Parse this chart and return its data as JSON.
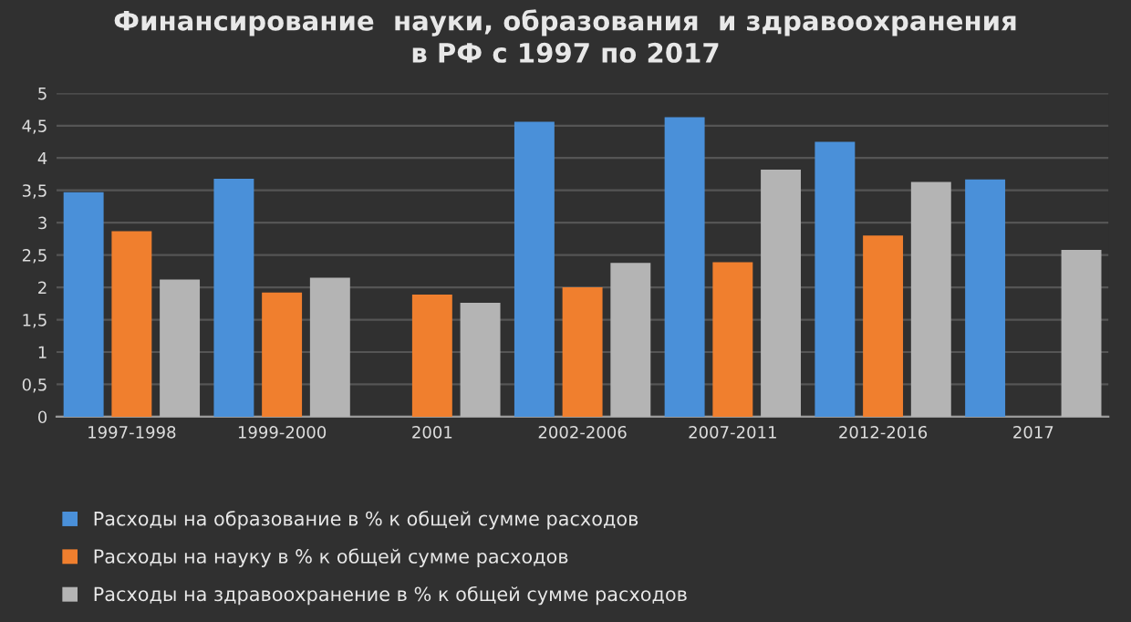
{
  "chart_data": {
    "type": "bar",
    "title": "Финансирование  науки, образования  и здравоохранения\nв РФ с 1997 по 2017",
    "categories": [
      "1997-1998",
      "1999-2000",
      "2001",
      "2002-2006",
      "2007-2011",
      "2012-2016",
      "2017"
    ],
    "series": [
      {
        "name": "Расходы на образование в % к общей сумме расходов",
        "color": "#4a90d9",
        "values": [
          3.47,
          3.68,
          null,
          4.56,
          4.63,
          4.25,
          3.67
        ]
      },
      {
        "name": "Расходы на науку в % к общей сумме расходов",
        "color": "#f07f2e",
        "values": [
          2.87,
          1.92,
          1.89,
          2.0,
          2.39,
          2.8,
          null
        ]
      },
      {
        "name": "Расходы на здравоохранение в % к общей сумме расходов",
        "color": "#b4b4b4",
        "values": [
          2.12,
          2.15,
          1.76,
          2.38,
          3.82,
          3.63,
          2.58
        ]
      }
    ],
    "ylim": [
      0,
      5
    ],
    "yticks": [
      0,
      {
        "value": 0.5,
        "label": "0,5"
      },
      1,
      {
        "value": 1.5,
        "label": "1,5"
      },
      2,
      {
        "value": 2.5,
        "label": "2,5"
      },
      3,
      {
        "value": 3.5,
        "label": "3,5"
      },
      4,
      {
        "value": 4.5,
        "label": "4,5"
      },
      5
    ],
    "grid": "y",
    "legend": "bottom"
  }
}
